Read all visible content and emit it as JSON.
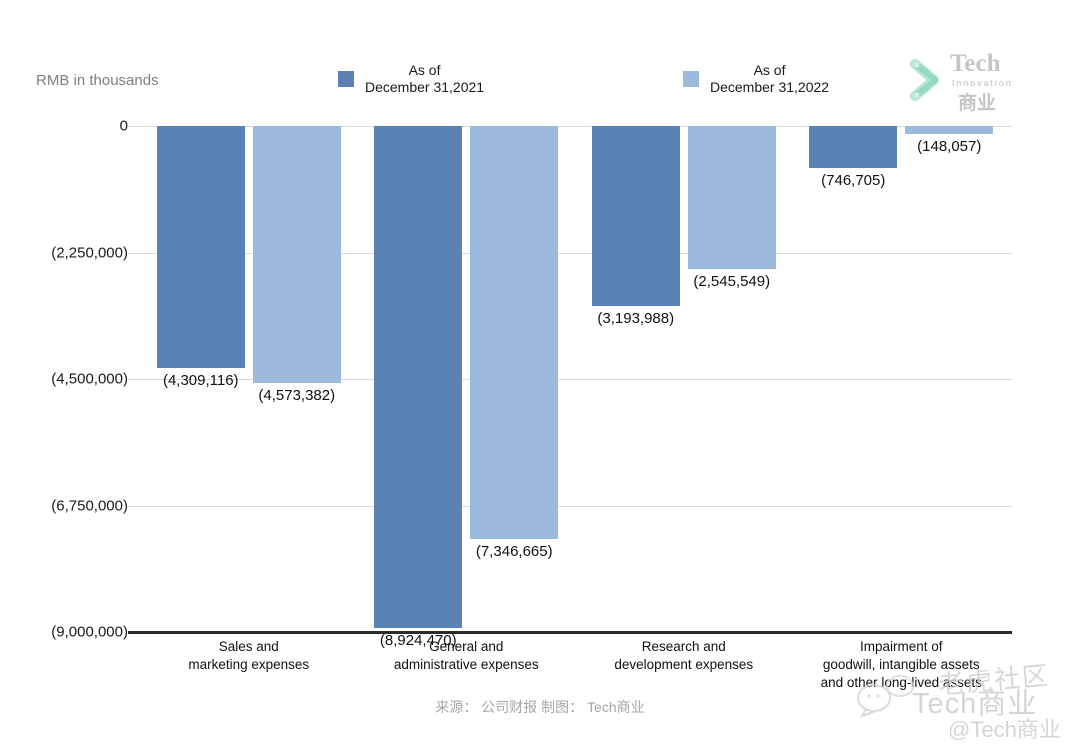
{
  "header": {
    "unit_label": "RMB in thousands",
    "legend": [
      {
        "line1": "As of",
        "line2": "December 31,2021",
        "color": "#5A82B5"
      },
      {
        "line1": "As of",
        "line2": "December 31,2022",
        "color": "#9CBBDC"
      }
    ],
    "logo": {
      "name": "Tech",
      "subtitle": "Innovation",
      "cn": "商业"
    }
  },
  "chart_data": {
    "type": "bar",
    "title": "",
    "unit": "RMB in thousands",
    "categories": [
      [
        "Sales and",
        "marketing expenses"
      ],
      [
        "General and",
        "administrative expenses"
      ],
      [
        "Research and",
        "development expenses"
      ],
      [
        "Impairment of",
        "goodwill, intangible assets",
        "and other long-lived assets"
      ]
    ],
    "series": [
      {
        "name": "As of December 31,2021",
        "color": "#5A82B5",
        "values": [
          -4309116,
          -8924470,
          -3193988,
          -746705
        ],
        "labels": [
          "(4,309,116)",
          "(8,924,470)",
          "(3,193,988)",
          "(746,705)"
        ]
      },
      {
        "name": "As of December 31,2022",
        "color": "#9CBBDC",
        "values": [
          -4573382,
          -7346665,
          -2545549,
          -148057
        ],
        "labels": [
          "(4,573,382)",
          "(7,346,665)",
          "(2,545,549)",
          "(148,057)"
        ]
      }
    ],
    "y_ticks": [
      {
        "value": 0,
        "label": "0"
      },
      {
        "value": -2250000,
        "label": "(2,250,000)"
      },
      {
        "value": -4500000,
        "label": "(4,500,000)"
      },
      {
        "value": -6750000,
        "label": "(6,750,000)"
      },
      {
        "value": -9000000,
        "label": "(9,000,000)"
      }
    ],
    "ylim": [
      -9000000,
      0
    ],
    "grid": true,
    "legend_position": "top"
  },
  "footer": {
    "source_text": "来源： 公司财报 制图： Tech商业"
  },
  "watermark": {
    "community": "老虎社区",
    "brand": "Tech商业",
    "handle": "@Tech商业"
  }
}
